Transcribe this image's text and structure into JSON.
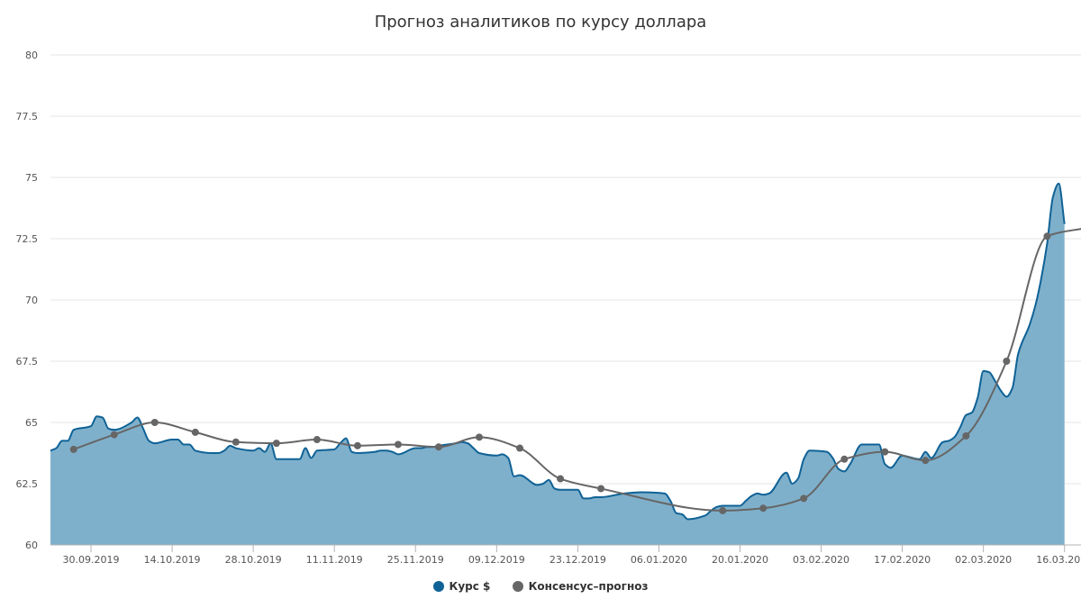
{
  "chart_data": {
    "type": "area",
    "title": "Прогноз аналитиков по курсу доллара",
    "xlabel": "",
    "ylabel": "",
    "ylim": [
      60,
      80
    ],
    "yticks": [
      "60",
      "62.5",
      "65",
      "67.5",
      "70",
      "72.5",
      "75",
      "77.5",
      "80"
    ],
    "xlim": [
      "2019-09-23",
      "2020-03-19"
    ],
    "xticks": [
      "30.09.2019",
      "14.10.2019",
      "28.10.2019",
      "11.11.2019",
      "25.11.2019",
      "09.12.2019",
      "23.12.2019",
      "06.01.2020",
      "20.01.2020",
      "03.02.2020",
      "17.02.2020",
      "02.03.2020",
      "16.03.2020"
    ],
    "grid": "horizontal",
    "legend_position": "bottom",
    "series": [
      {
        "name": "Курс $",
        "style": "area",
        "color": "#0f6296",
        "fill": "#7fb0cb",
        "points": [
          [
            "2019-09-23",
            63.85
          ],
          [
            "2019-09-24",
            63.95
          ],
          [
            "2019-09-25",
            64.25
          ],
          [
            "2019-09-26",
            64.25
          ],
          [
            "2019-09-27",
            64.7
          ],
          [
            "2019-09-30",
            64.85
          ],
          [
            "2019-10-01",
            65.25
          ],
          [
            "2019-10-02",
            65.2
          ],
          [
            "2019-10-03",
            64.75
          ],
          [
            "2019-10-04",
            64.7
          ],
          [
            "2019-10-07",
            65.0
          ],
          [
            "2019-10-08",
            65.2
          ],
          [
            "2019-10-09",
            64.75
          ],
          [
            "2019-10-10",
            64.25
          ],
          [
            "2019-10-11",
            64.15
          ],
          [
            "2019-10-14",
            64.3
          ],
          [
            "2019-10-15",
            64.3
          ],
          [
            "2019-10-16",
            64.1
          ],
          [
            "2019-10-17",
            64.1
          ],
          [
            "2019-10-18",
            63.85
          ],
          [
            "2019-10-21",
            63.75
          ],
          [
            "2019-10-22",
            63.75
          ],
          [
            "2019-10-23",
            63.85
          ],
          [
            "2019-10-24",
            64.05
          ],
          [
            "2019-10-25",
            63.95
          ],
          [
            "2019-10-28",
            63.85
          ],
          [
            "2019-10-29",
            63.95
          ],
          [
            "2019-10-30",
            63.8
          ],
          [
            "2019-10-31",
            64.15
          ],
          [
            "2019-11-01",
            63.5
          ],
          [
            "2019-11-04",
            63.5
          ],
          [
            "2019-11-05",
            63.5
          ],
          [
            "2019-11-06",
            63.95
          ],
          [
            "2019-11-07",
            63.55
          ],
          [
            "2019-11-08",
            63.85
          ],
          [
            "2019-11-11",
            63.9
          ],
          [
            "2019-11-12",
            64.15
          ],
          [
            "2019-11-13",
            64.35
          ],
          [
            "2019-11-14",
            63.8
          ],
          [
            "2019-11-15",
            63.75
          ],
          [
            "2019-11-18",
            63.8
          ],
          [
            "2019-11-19",
            63.85
          ],
          [
            "2019-11-20",
            63.85
          ],
          [
            "2019-11-21",
            63.8
          ],
          [
            "2019-11-22",
            63.7
          ],
          [
            "2019-11-25",
            63.95
          ],
          [
            "2019-11-26",
            63.95
          ],
          [
            "2019-11-27",
            64.0
          ],
          [
            "2019-11-28",
            64.0
          ],
          [
            "2019-11-29",
            64.05
          ],
          [
            "2019-12-02",
            64.15
          ],
          [
            "2019-12-03",
            64.2
          ],
          [
            "2019-12-04",
            64.15
          ],
          [
            "2019-12-05",
            63.95
          ],
          [
            "2019-12-06",
            63.75
          ],
          [
            "2019-12-09",
            63.65
          ],
          [
            "2019-12-10",
            63.7
          ],
          [
            "2019-12-11",
            63.55
          ],
          [
            "2019-12-12",
            62.8
          ],
          [
            "2019-12-13",
            62.85
          ],
          [
            "2019-12-16",
            62.45
          ],
          [
            "2019-12-17",
            62.5
          ],
          [
            "2019-12-18",
            62.65
          ],
          [
            "2019-12-19",
            62.3
          ],
          [
            "2019-12-20",
            62.25
          ],
          [
            "2019-12-23",
            62.25
          ],
          [
            "2019-12-24",
            61.9
          ],
          [
            "2019-12-25",
            61.9
          ],
          [
            "2019-12-26",
            61.95
          ],
          [
            "2019-12-27",
            61.95
          ],
          [
            "2019-12-31",
            62.1
          ],
          [
            "2020-01-03",
            62.15
          ],
          [
            "2020-01-07",
            62.1
          ],
          [
            "2020-01-08",
            61.8
          ],
          [
            "2020-01-09",
            61.3
          ],
          [
            "2020-01-10",
            61.25
          ],
          [
            "2020-01-11",
            61.05
          ],
          [
            "2020-01-14",
            61.2
          ],
          [
            "2020-01-15",
            61.4
          ],
          [
            "2020-01-16",
            61.55
          ],
          [
            "2020-01-17",
            61.6
          ],
          [
            "2020-01-20",
            61.6
          ],
          [
            "2020-01-21",
            61.8
          ],
          [
            "2020-01-22",
            62.0
          ],
          [
            "2020-01-23",
            62.1
          ],
          [
            "2020-01-24",
            62.05
          ],
          [
            "2020-01-25",
            62.1
          ],
          [
            "2020-01-28",
            62.95
          ],
          [
            "2020-01-29",
            62.5
          ],
          [
            "2020-01-30",
            62.7
          ],
          [
            "2020-01-31",
            63.5
          ],
          [
            "2020-02-01",
            63.85
          ],
          [
            "2020-02-04",
            63.8
          ],
          [
            "2020-02-05",
            63.55
          ],
          [
            "2020-02-06",
            63.1
          ],
          [
            "2020-02-07",
            63.0
          ],
          [
            "2020-02-08",
            63.3
          ],
          [
            "2020-02-10",
            64.1
          ],
          [
            "2020-02-11",
            64.1
          ],
          [
            "2020-02-13",
            64.1
          ],
          [
            "2020-02-14",
            63.3
          ],
          [
            "2020-02-15",
            63.15
          ],
          [
            "2020-02-17",
            63.65
          ],
          [
            "2020-02-18",
            63.6
          ],
          [
            "2020-02-20",
            63.5
          ],
          [
            "2020-02-21",
            63.8
          ],
          [
            "2020-02-22",
            63.55
          ],
          [
            "2020-02-24",
            64.2
          ],
          [
            "2020-02-25",
            64.25
          ],
          [
            "2020-02-26",
            64.4
          ],
          [
            "2020-02-27",
            64.8
          ],
          [
            "2020-02-28",
            65.3
          ],
          [
            "2020-02-29",
            65.4
          ],
          [
            "2020-03-01",
            66.0
          ],
          [
            "2020-03-02",
            67.1
          ],
          [
            "2020-03-03",
            67.05
          ],
          [
            "2020-03-04",
            66.7
          ],
          [
            "2020-03-05",
            66.3
          ],
          [
            "2020-03-06",
            66.05
          ],
          [
            "2020-03-07",
            66.4
          ],
          [
            "2020-03-08",
            67.8
          ],
          [
            "2020-03-10",
            69.0
          ],
          [
            "2020-03-11",
            69.8
          ],
          [
            "2020-03-12",
            70.9
          ],
          [
            "2020-03-13",
            72.3
          ],
          [
            "2020-03-14",
            74.2
          ],
          [
            "2020-03-15",
            74.75
          ],
          [
            "2020-03-16",
            73.1
          ]
        ]
      },
      {
        "name": "Консенсус–прогноз",
        "style": "line-markers",
        "color": "#666666",
        "points": [
          [
            "2019-09-27",
            63.9
          ],
          [
            "2019-10-04",
            64.5
          ],
          [
            "2019-10-11",
            65.0
          ],
          [
            "2019-10-18",
            64.6
          ],
          [
            "2019-10-25",
            64.2
          ],
          [
            "2019-11-01",
            64.15
          ],
          [
            "2019-11-08",
            64.3
          ],
          [
            "2019-11-15",
            64.05
          ],
          [
            "2019-11-22",
            64.1
          ],
          [
            "2019-11-29",
            64.0
          ],
          [
            "2019-12-06",
            64.4
          ],
          [
            "2019-12-13",
            63.95
          ],
          [
            "2019-12-20",
            62.7
          ],
          [
            "2019-12-27",
            62.3
          ],
          [
            "2020-01-17",
            61.4
          ],
          [
            "2020-01-24",
            61.5
          ],
          [
            "2020-01-31",
            61.9
          ],
          [
            "2020-02-07",
            63.5
          ],
          [
            "2020-02-14",
            63.8
          ],
          [
            "2020-02-21",
            63.45
          ],
          [
            "2020-02-28",
            64.45
          ],
          [
            "2020-03-06",
            67.5
          ],
          [
            "2020-03-13",
            72.6
          ],
          [
            "2020-03-20",
            72.95
          ]
        ]
      }
    ]
  }
}
